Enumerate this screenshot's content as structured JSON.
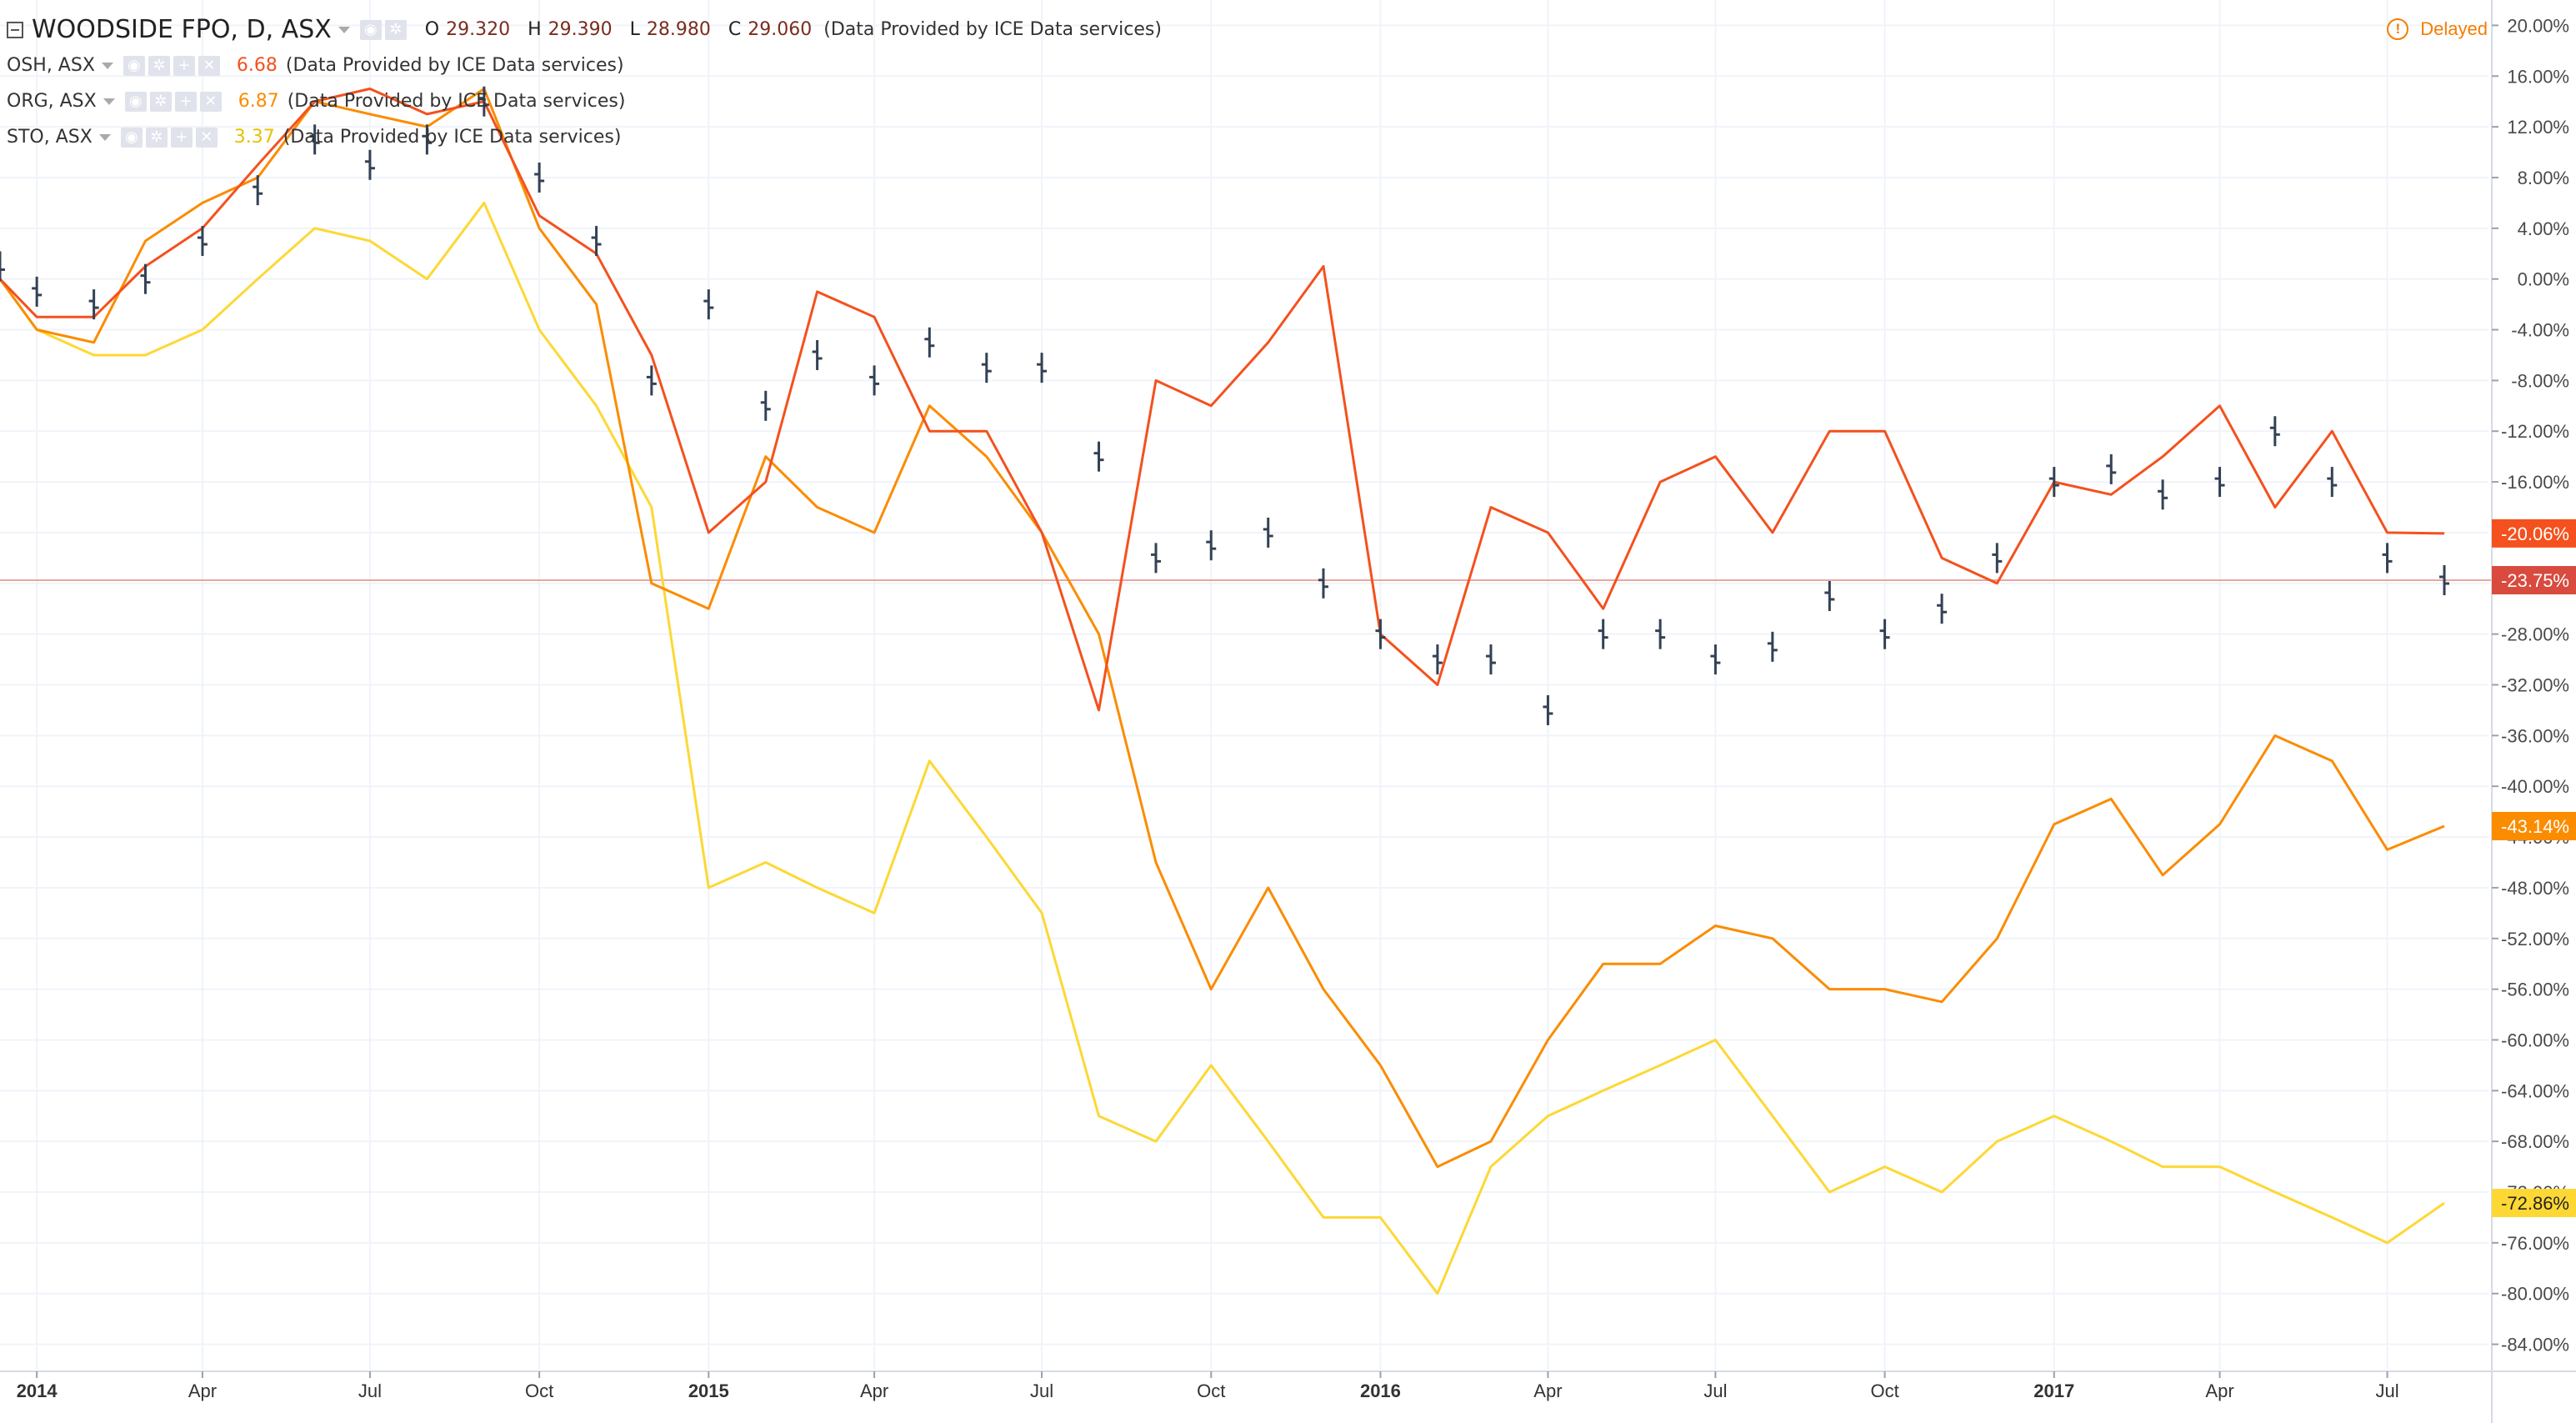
{
  "legend": {
    "main": {
      "title": "WOODSIDE FPO, D, ASX",
      "o_label": "O",
      "o": "29.320",
      "h_label": "H",
      "h": "29.390",
      "l_label": "L",
      "l": "28.980",
      "c_label": "C",
      "c": "29.060",
      "provider": "(Data Provided by ICE Data services)"
    },
    "compare": [
      {
        "symbol": "OSH, ASX",
        "value": "6.68",
        "color": "#f4511e",
        "provider": "(Data Provided by ICE Data services)"
      },
      {
        "symbol": "ORG, ASX",
        "value": "6.87",
        "color": "#fb8c00",
        "provider": "(Data Provided by ICE Data services)"
      },
      {
        "symbol": "STO, ASX",
        "value": "3.37",
        "color": "#fdd835",
        "provider": "(Data Provided by ICE Data services)"
      }
    ]
  },
  "delayed": {
    "icon": "!",
    "label": "Delayed"
  },
  "colors": {
    "main_bar": "#334155",
    "main_label_bg": "#d84b3e",
    "osh": "#f4511e",
    "org": "#fb8c00",
    "sto": "#fdd835",
    "grid": "#f0f3fa"
  },
  "chart_data": {
    "type": "line",
    "y_unit": "percent change",
    "ylim": [
      -86,
      22
    ],
    "y_ticks": [
      "20.00%",
      "16.00%",
      "12.00%",
      "8.00%",
      "4.00%",
      "0.00%",
      "-4.00%",
      "-8.00%",
      "-12.00%",
      "-16.00%",
      "-20.00%",
      "-24.00%",
      "-28.00%",
      "-32.00%",
      "-36.00%",
      "-40.00%",
      "-44.00%",
      "-48.00%",
      "-52.00%",
      "-56.00%",
      "-60.00%",
      "-64.00%",
      "-68.00%",
      "-72.00%",
      "-76.00%",
      "-80.00%",
      "-84.00%"
    ],
    "x_ticks": [
      {
        "label": "2014",
        "date": "2014-01-01",
        "bold": true
      },
      {
        "label": "Apr",
        "date": "2014-04-01",
        "bold": false
      },
      {
        "label": "Jul",
        "date": "2014-07-01",
        "bold": false
      },
      {
        "label": "Oct",
        "date": "2014-10-01",
        "bold": false
      },
      {
        "label": "2015",
        "date": "2015-01-01",
        "bold": true
      },
      {
        "label": "Apr",
        "date": "2015-04-01",
        "bold": false
      },
      {
        "label": "Jul",
        "date": "2015-07-01",
        "bold": false
      },
      {
        "label": "Oct",
        "date": "2015-10-01",
        "bold": false
      },
      {
        "label": "2016",
        "date": "2016-01-01",
        "bold": true
      },
      {
        "label": "Apr",
        "date": "2016-04-01",
        "bold": false
      },
      {
        "label": "Jul",
        "date": "2016-07-01",
        "bold": false
      },
      {
        "label": "Oct",
        "date": "2016-10-01",
        "bold": false
      },
      {
        "label": "2017",
        "date": "2017-01-01",
        "bold": true
      },
      {
        "label": "Apr",
        "date": "2017-04-01",
        "bold": false
      },
      {
        "label": "Jul",
        "date": "2017-07-01",
        "bold": false
      }
    ],
    "xlim": [
      "2013-12-12",
      "2017-08-25"
    ],
    "last_value_labels": [
      {
        "series": "OSH, ASX",
        "text": "-20.06%",
        "value": -20.06
      },
      {
        "series": "WOODSIDE FPO, D, ASX",
        "text": "-23.75%",
        "value": -23.75
      },
      {
        "series": "ORG, ASX",
        "text": "-43.14%",
        "value": -43.14
      },
      {
        "series": "STO, ASX",
        "text": "-72.86%",
        "value": -72.86
      }
    ],
    "series": [
      {
        "name": "WOODSIDE FPO, D, ASX",
        "style": "ohlc",
        "dates": [
          "2013-12-12",
          "2014-01-01",
          "2014-02-01",
          "2014-03-01",
          "2014-04-01",
          "2014-05-01",
          "2014-06-01",
          "2014-07-01",
          "2014-08-01",
          "2014-09-01",
          "2014-10-01",
          "2014-11-01",
          "2014-12-01",
          "2015-01-01",
          "2015-02-01",
          "2015-03-01",
          "2015-04-01",
          "2015-05-01",
          "2015-06-01",
          "2015-07-01",
          "2015-08-01",
          "2015-09-01",
          "2015-10-01",
          "2015-11-01",
          "2015-12-01",
          "2016-01-01",
          "2016-02-01",
          "2016-03-01",
          "2016-04-01",
          "2016-05-01",
          "2016-06-01",
          "2016-07-01",
          "2016-08-01",
          "2016-09-01",
          "2016-10-01",
          "2016-11-01",
          "2016-12-01",
          "2017-01-01",
          "2017-02-01",
          "2017-03-01",
          "2017-04-01",
          "2017-05-01",
          "2017-06-01",
          "2017-07-01",
          "2017-08-01"
        ],
        "values": [
          1,
          -1,
          -2,
          0,
          3,
          7,
          11,
          9,
          11,
          14,
          8,
          3,
          -8,
          -2,
          -10,
          -6,
          -8,
          -5,
          -7,
          -7,
          -14,
          -22,
          -21,
          -20,
          -24,
          -28,
          -30,
          -30,
          -34,
          -28,
          -28,
          -30,
          -29,
          -25,
          -28,
          -26,
          -22,
          -16,
          -15,
          -17,
          -16,
          -12,
          -16,
          -22,
          -23.75
        ]
      },
      {
        "name": "OSH, ASX",
        "style": "line",
        "dates": [
          "2013-12-12",
          "2014-01-01",
          "2014-02-01",
          "2014-03-01",
          "2014-04-01",
          "2014-05-01",
          "2014-06-01",
          "2014-07-01",
          "2014-08-01",
          "2014-09-01",
          "2014-10-01",
          "2014-11-01",
          "2014-12-01",
          "2015-01-01",
          "2015-02-01",
          "2015-03-01",
          "2015-04-01",
          "2015-05-01",
          "2015-06-01",
          "2015-07-01",
          "2015-08-01",
          "2015-09-01",
          "2015-10-01",
          "2015-11-01",
          "2015-12-01",
          "2016-01-01",
          "2016-02-01",
          "2016-03-01",
          "2016-04-01",
          "2016-05-01",
          "2016-06-01",
          "2016-07-01",
          "2016-08-01",
          "2016-09-01",
          "2016-10-01",
          "2016-11-01",
          "2016-12-01",
          "2017-01-01",
          "2017-02-01",
          "2017-03-01",
          "2017-04-01",
          "2017-05-01",
          "2017-06-01",
          "2017-07-01",
          "2017-08-01"
        ],
        "values": [
          0,
          -3,
          -3,
          1,
          4,
          9,
          14,
          15,
          13,
          14,
          5,
          2,
          -6,
          -20,
          -16,
          -1,
          -3,
          -12,
          -12,
          -20,
          -34,
          -8,
          -10,
          -5,
          1,
          -28,
          -32,
          -18,
          -20,
          -26,
          -16,
          -14,
          -20,
          -12,
          -12,
          -22,
          -24,
          -16,
          -17,
          -14,
          -10,
          -18,
          -12,
          -20,
          -20.06
        ]
      },
      {
        "name": "ORG, ASX",
        "style": "line",
        "dates": [
          "2013-12-12",
          "2014-01-01",
          "2014-02-01",
          "2014-03-01",
          "2014-04-01",
          "2014-05-01",
          "2014-06-01",
          "2014-07-01",
          "2014-08-01",
          "2014-09-01",
          "2014-10-01",
          "2014-11-01",
          "2014-12-01",
          "2015-01-01",
          "2015-02-01",
          "2015-03-01",
          "2015-04-01",
          "2015-05-01",
          "2015-06-01",
          "2015-07-01",
          "2015-08-01",
          "2015-09-01",
          "2015-10-01",
          "2015-11-01",
          "2015-12-01",
          "2016-01-01",
          "2016-02-01",
          "2016-03-01",
          "2016-04-01",
          "2016-05-01",
          "2016-06-01",
          "2016-07-01",
          "2016-08-01",
          "2016-09-01",
          "2016-10-01",
          "2016-11-01",
          "2016-12-01",
          "2017-01-01",
          "2017-02-01",
          "2017-03-01",
          "2017-04-01",
          "2017-05-01",
          "2017-06-01",
          "2017-07-01",
          "2017-08-01"
        ],
        "values": [
          0,
          -4,
          -5,
          3,
          6,
          8,
          14,
          13,
          12,
          15,
          4,
          -2,
          -24,
          -26,
          -14,
          -18,
          -20,
          -10,
          -14,
          -20,
          -28,
          -46,
          -56,
          -48,
          -56,
          -62,
          -70,
          -68,
          -60,
          -54,
          -54,
          -51,
          -52,
          -56,
          -56,
          -57,
          -52,
          -43,
          -41,
          -47,
          -43,
          -36,
          -38,
          -45,
          -43.14
        ]
      },
      {
        "name": "STO, ASX",
        "style": "line",
        "dates": [
          "2013-12-12",
          "2014-01-01",
          "2014-02-01",
          "2014-03-01",
          "2014-04-01",
          "2014-05-01",
          "2014-06-01",
          "2014-07-01",
          "2014-08-01",
          "2014-09-01",
          "2014-10-01",
          "2014-11-01",
          "2014-12-01",
          "2015-01-01",
          "2015-02-01",
          "2015-03-01",
          "2015-04-01",
          "2015-05-01",
          "2015-06-01",
          "2015-07-01",
          "2015-08-01",
          "2015-09-01",
          "2015-10-01",
          "2015-11-01",
          "2015-12-01",
          "2016-01-01",
          "2016-02-01",
          "2016-03-01",
          "2016-04-01",
          "2016-05-01",
          "2016-06-01",
          "2016-07-01",
          "2016-08-01",
          "2016-09-01",
          "2016-10-01",
          "2016-11-01",
          "2016-12-01",
          "2017-01-01",
          "2017-02-01",
          "2017-03-01",
          "2017-04-01",
          "2017-05-01",
          "2017-06-01",
          "2017-07-01",
          "2017-08-01"
        ],
        "values": [
          0,
          -4,
          -6,
          -6,
          -4,
          0,
          4,
          3,
          0,
          6,
          -4,
          -10,
          -18,
          -48,
          -46,
          -48,
          -50,
          -38,
          -44,
          -50,
          -66,
          -68,
          -62,
          -68,
          -74,
          -74,
          -80,
          -70,
          -66,
          -64,
          -62,
          -60,
          -66,
          -72,
          -70,
          -72,
          -68,
          -66,
          -68,
          -70,
          -70,
          -72,
          -74,
          -76,
          -72.86
        ]
      }
    ]
  }
}
